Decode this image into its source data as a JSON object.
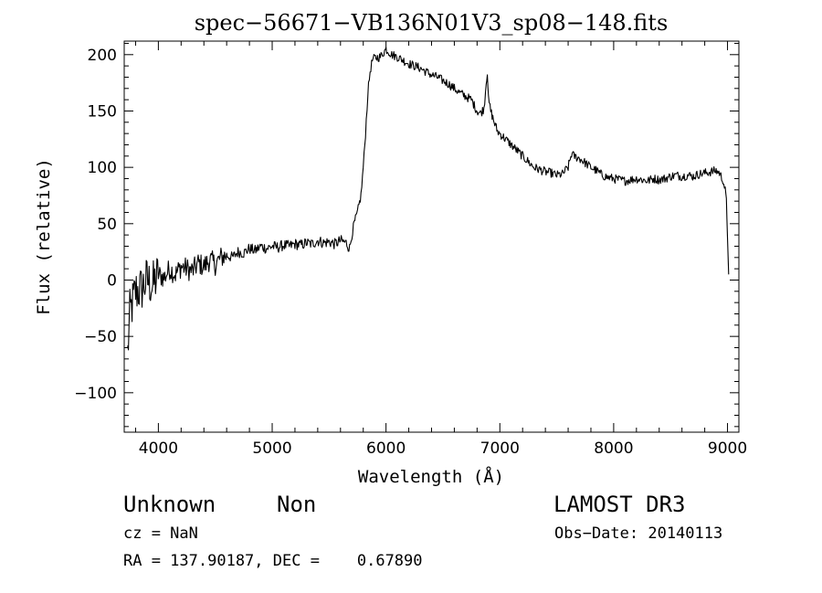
{
  "chart_data": {
    "type": "line",
    "title": "spec−56671−VB136N01V3_sp08−148.fits",
    "xlabel": "Wavelength (Å)",
    "ylabel": "Flux (relative)",
    "xlim": [
      3700,
      9100
    ],
    "ylim": [
      -135,
      212
    ],
    "xticks": [
      {
        "value": 4000,
        "label": "4000"
      },
      {
        "value": 5000,
        "label": "5000"
      },
      {
        "value": 6000,
        "label": "6000"
      },
      {
        "value": 7000,
        "label": "7000"
      },
      {
        "value": 8000,
        "label": "8000"
      },
      {
        "value": 9000,
        "label": "9000"
      }
    ],
    "yticks": [
      {
        "value": 200,
        "label": "200"
      },
      {
        "value": 150,
        "label": "150"
      },
      {
        "value": 100,
        "label": "100"
      },
      {
        "value": 50,
        "label": "50"
      },
      {
        "value": 0,
        "label": "0"
      },
      {
        "value": -50,
        "label": "−50"
      },
      {
        "value": -100,
        "label": "−100"
      }
    ],
    "x": [
      3730,
      3750,
      3800,
      3850,
      3900,
      3950,
      4000,
      4050,
      4100,
      4150,
      4200,
      4250,
      4300,
      4350,
      4400,
      4450,
      4500,
      4550,
      4600,
      4650,
      4700,
      4750,
      4800,
      4850,
      4900,
      4950,
      5000,
      5050,
      5100,
      5150,
      5200,
      5250,
      5300,
      5350,
      5400,
      5450,
      5500,
      5550,
      5600,
      5650,
      5680,
      5700,
      5720,
      5750,
      5780,
      5800,
      5820,
      5840,
      5860,
      5880,
      5900,
      5950,
      6000,
      6050,
      6100,
      6150,
      6200,
      6250,
      6300,
      6350,
      6400,
      6450,
      6500,
      6550,
      6600,
      6650,
      6700,
      6750,
      6800,
      6830,
      6860,
      6880,
      6890,
      6900,
      6920,
      6950,
      6980,
      7000,
      7050,
      7100,
      7150,
      7200,
      7250,
      7300,
      7350,
      7400,
      7450,
      7500,
      7550,
      7600,
      7630,
      7650,
      7700,
      7750,
      7800,
      7850,
      7900,
      7950,
      8000,
      8050,
      8100,
      8150,
      8200,
      8250,
      8300,
      8350,
      8400,
      8450,
      8500,
      8550,
      8600,
      8650,
      8700,
      8750,
      8800,
      8850,
      8900,
      8930,
      8960,
      8980,
      8990,
      9000,
      9010
    ],
    "y": [
      -65,
      -30,
      -10,
      -8,
      0,
      -5,
      5,
      2,
      10,
      5,
      12,
      10,
      8,
      15,
      12,
      18,
      14,
      20,
      22,
      20,
      25,
      24,
      28,
      26,
      30,
      28,
      30,
      29,
      31,
      30,
      32,
      31,
      33,
      32,
      35,
      33,
      34,
      32,
      35,
      33,
      28,
      40,
      50,
      60,
      75,
      100,
      130,
      165,
      185,
      195,
      197,
      198,
      205,
      200,
      198,
      195,
      192,
      190,
      188,
      185,
      182,
      180,
      177,
      174,
      170,
      166,
      163,
      160,
      150,
      148,
      152,
      175,
      185,
      160,
      150,
      140,
      132,
      130,
      125,
      120,
      115,
      110,
      105,
      100,
      98,
      96,
      95,
      93,
      94,
      100,
      112,
      110,
      108,
      104,
      100,
      97,
      93,
      91,
      90,
      89,
      88,
      89,
      90,
      89,
      88,
      90,
      89,
      90,
      92,
      93,
      92,
      93,
      92,
      94,
      95,
      96,
      97,
      95,
      88,
      80,
      70,
      40,
      5
    ]
  },
  "info": {
    "object_type": "Unknown",
    "subclass": "Non",
    "survey": "LAMOST DR3",
    "cz": "cz = NaN",
    "obs_date": "Obs−Date: 20140113",
    "coords": "RA = 137.90187, DEC =    0.67890"
  }
}
